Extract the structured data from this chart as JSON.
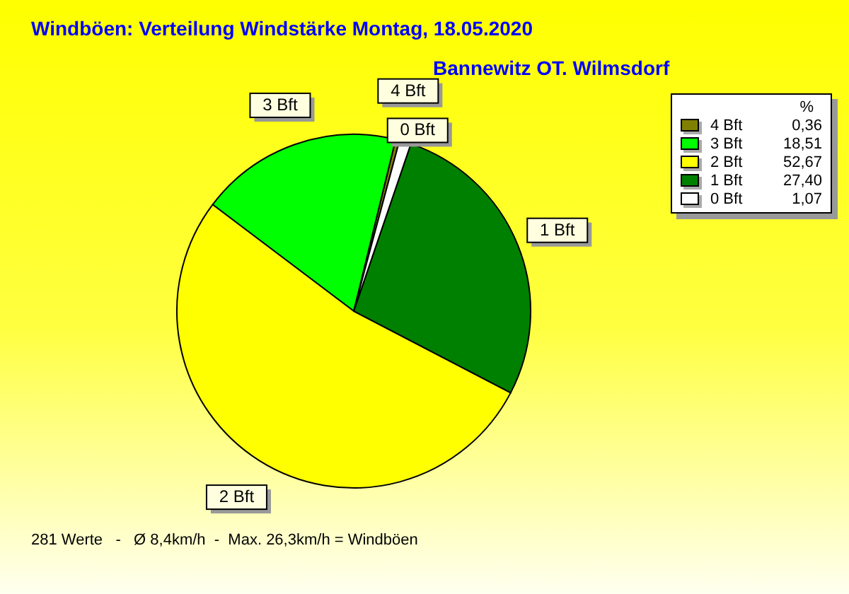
{
  "chart_data": {
    "type": "pie",
    "title": "Windböen: Verteilung Windstärke  Montag, 18.05.2020",
    "subtitle": "Bannewitz OT. Wilmsdorf",
    "categories": [
      "4 Bft",
      "3 Bft",
      "2 Bft",
      "1 Bft",
      "0 Bft"
    ],
    "values": [
      0.36,
      18.51,
      52.67,
      27.4,
      1.07
    ],
    "colors": [
      "#808000",
      "#00ff00",
      "#ffff00",
      "#008000",
      "#ffffff"
    ],
    "value_labels": [
      "0,36",
      "18,51",
      "52,67",
      "27,40",
      "1,07"
    ],
    "legend": "top right",
    "legend_title": "%",
    "annotations": [
      "281 Werte   -   Ø 8,4km/h  -  Max. 26,3km/h = Windböen"
    ]
  }
}
